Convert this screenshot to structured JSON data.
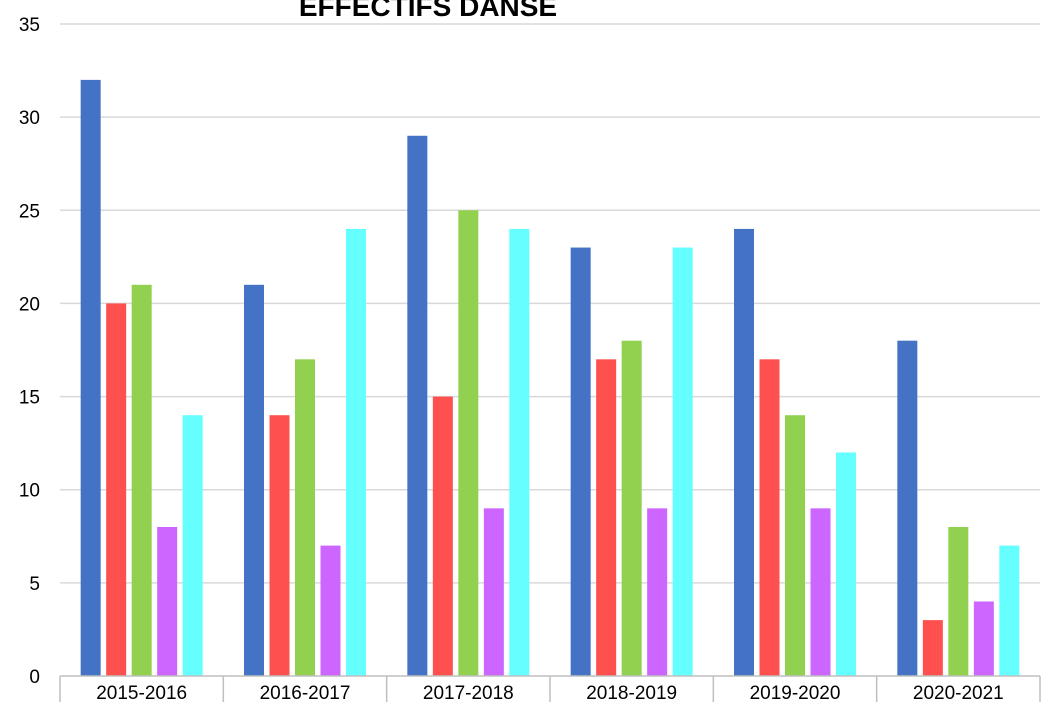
{
  "chart_data": {
    "type": "bar",
    "title": "EFFECTIFS DANSE",
    "xlabel": "",
    "ylabel": "",
    "categories": [
      "2015-2016",
      "2016-2017",
      "2017-2018",
      "2018-2019",
      "2019-2020",
      "2020-2021"
    ],
    "ylim": [
      0,
      35
    ],
    "yticks": [
      0,
      5,
      10,
      15,
      20,
      25,
      30,
      35
    ],
    "grid": true,
    "legend": "none",
    "series": [
      {
        "color": "#4472C4",
        "values": [
          32,
          21,
          29,
          23,
          24,
          18
        ]
      },
      {
        "color": "#FF5050",
        "values": [
          20,
          14,
          15,
          17,
          17,
          3
        ]
      },
      {
        "color": "#92D050",
        "values": [
          21,
          17,
          25,
          18,
          14,
          8
        ]
      },
      {
        "color": "#CC66FF",
        "values": [
          8,
          7,
          9,
          9,
          9,
          4
        ]
      },
      {
        "color": "#66FFFF",
        "values": [
          14,
          24,
          24,
          23,
          12,
          7
        ]
      }
    ]
  }
}
